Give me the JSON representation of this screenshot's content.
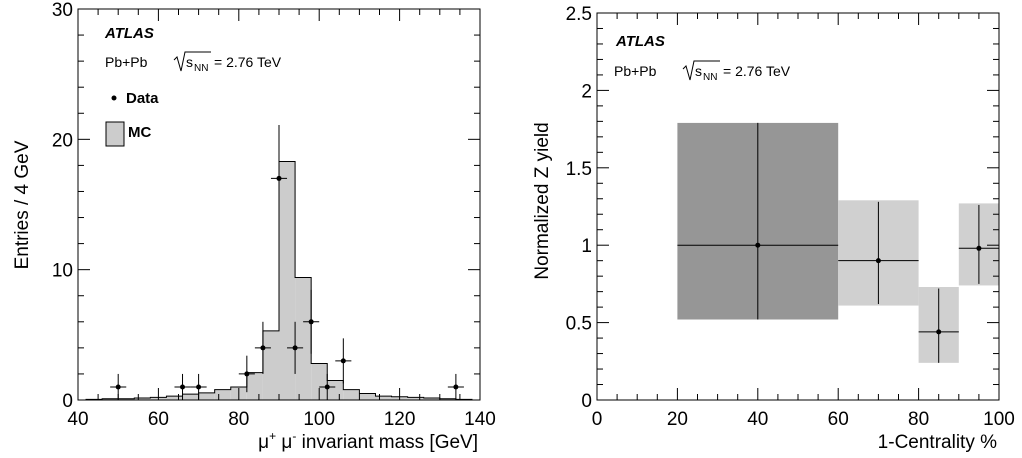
{
  "chart_data": [
    {
      "type": "bar",
      "subtype": "histogram_with_points",
      "atlas_label": "ATLAS",
      "system": "Pb+Pb",
      "sqrt_label": "s",
      "sqrt_sub": "NN",
      "energy": "= 2.76 TeV",
      "xlabel_parts": [
        "μ",
        "+",
        " μ",
        "-",
        " invariant mass [GeV]"
      ],
      "ylabel": "Entries / 4 GeV",
      "xlim": [
        40,
        140
      ],
      "ylim": [
        0,
        30
      ],
      "x_ticks": [
        40,
        60,
        80,
        100,
        120,
        140
      ],
      "y_ticks": [
        0,
        10,
        20,
        30
      ],
      "legend": [
        {
          "name": "Data",
          "marker": "point"
        },
        {
          "name": "MC",
          "marker": "box"
        }
      ],
      "mc_bin_edges": [
        42,
        46,
        50,
        54,
        58,
        62,
        66,
        70,
        74,
        78,
        82,
        86,
        90,
        94,
        98,
        102,
        106,
        110,
        114,
        118,
        122,
        126,
        130,
        134,
        138
      ],
      "mc_values": [
        0.05,
        0.1,
        0.1,
        0.15,
        0.2,
        0.3,
        0.45,
        0.55,
        0.8,
        1.0,
        2.1,
        5.3,
        18.3,
        9.4,
        2.8,
        1.5,
        0.8,
        0.5,
        0.3,
        0.25,
        0.2,
        0.15,
        0.1,
        0.05
      ],
      "data_points": [
        {
          "x": 50,
          "y": 1,
          "err": 1,
          "xerr": 2
        },
        {
          "x": 66,
          "y": 1,
          "err": 1,
          "xerr": 2
        },
        {
          "x": 70,
          "y": 1,
          "err": 1,
          "xerr": 2
        },
        {
          "x": 82,
          "y": 2,
          "err": 1.4,
          "xerr": 2
        },
        {
          "x": 86,
          "y": 4,
          "err": 2,
          "xerr": 2
        },
        {
          "x": 90,
          "y": 17,
          "err": 4.1,
          "xerr": 2
        },
        {
          "x": 94,
          "y": 4,
          "err": 2,
          "xerr": 2
        },
        {
          "x": 98,
          "y": 6,
          "err": 2.45,
          "xerr": 2
        },
        {
          "x": 102,
          "y": 1,
          "err": 1,
          "xerr": 2
        },
        {
          "x": 106,
          "y": 3,
          "err": 1.73,
          "xerr": 2
        },
        {
          "x": 134,
          "y": 1,
          "err": 1,
          "xerr": 2
        }
      ]
    },
    {
      "type": "scatter",
      "subtype": "points_with_systematic_boxes",
      "atlas_label": "ATLAS",
      "system": "Pb+Pb",
      "sqrt_label": "s",
      "sqrt_sub": "NN",
      "energy": "= 2.76 TeV",
      "xlabel": "1-Centrality %",
      "ylabel": "Normalized Z yield",
      "xlim": [
        0,
        100
      ],
      "ylim": [
        0,
        2.5
      ],
      "x_ticks": [
        0,
        20,
        40,
        60,
        80,
        100
      ],
      "y_ticks": [
        0,
        0.5,
        1,
        1.5,
        2,
        2.5
      ],
      "y_tick_labels": [
        "0",
        "0.5",
        "1",
        "1.5",
        "2",
        "2.5"
      ],
      "points": [
        {
          "x": 40,
          "y": 1.0,
          "x_lo": 20,
          "x_hi": 60,
          "y_lo": 0.52,
          "y_hi": 1.79,
          "box_lo": 0.52,
          "box_hi": 1.79,
          "box_color": "#969696"
        },
        {
          "x": 70,
          "y": 0.9,
          "x_lo": 60,
          "x_hi": 80,
          "y_lo": 0.62,
          "y_hi": 1.28,
          "box_lo": 0.61,
          "box_hi": 1.29,
          "box_color": "#d0d0d0"
        },
        {
          "x": 85,
          "y": 0.44,
          "x_lo": 80,
          "x_hi": 90,
          "y_lo": 0.24,
          "y_hi": 0.72,
          "box_lo": 0.24,
          "box_hi": 0.73,
          "box_color": "#d0d0d0"
        },
        {
          "x": 95,
          "y": 0.98,
          "x_lo": 90,
          "x_hi": 100,
          "y_lo": 0.75,
          "y_hi": 1.26,
          "box_lo": 0.74,
          "box_hi": 1.27,
          "box_color": "#d0d0d0"
        }
      ]
    }
  ],
  "colors": {
    "mc_fill": "#cccccc",
    "line": "#000000"
  }
}
